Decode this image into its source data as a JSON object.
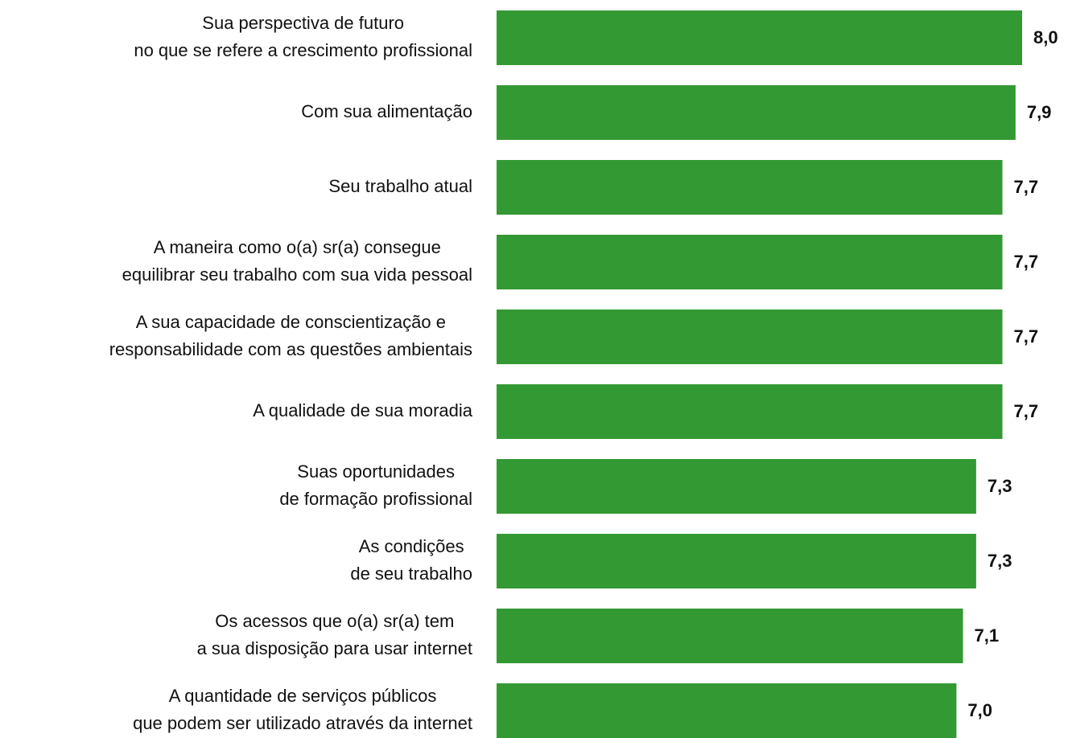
{
  "chart_data": {
    "type": "barh",
    "categories": [
      "Sua perspectiva de futuro\nno que se refere a crescimento profissional",
      "Com sua alimentação",
      "Seu trabalho atual",
      "A maneira como o(a) sr(a) consegue\nequilibrar seu trabalho com sua vida pessoal",
      "A sua capacidade de conscientização e\nresponsabilidade com as questões ambientais",
      "A qualidade de sua moradia",
      "Suas oportunidades\nde formação profissional",
      "As condições\nde seu trabalho",
      "Os acessos que o(a) sr(a) tem\na sua disposição para usar internet",
      "A quantidade de serviços públicos\nque podem ser utilizado através da internet"
    ],
    "values": [
      8.0,
      7.9,
      7.7,
      7.7,
      7.7,
      7.7,
      7.3,
      7.3,
      7.1,
      7.0
    ],
    "value_labels": [
      "8,0",
      "7,9",
      "7,7",
      "7,7",
      "7,7",
      "7,7",
      "7,3",
      "7,3",
      "7,1",
      "7,0"
    ],
    "color": "#339933"
  }
}
